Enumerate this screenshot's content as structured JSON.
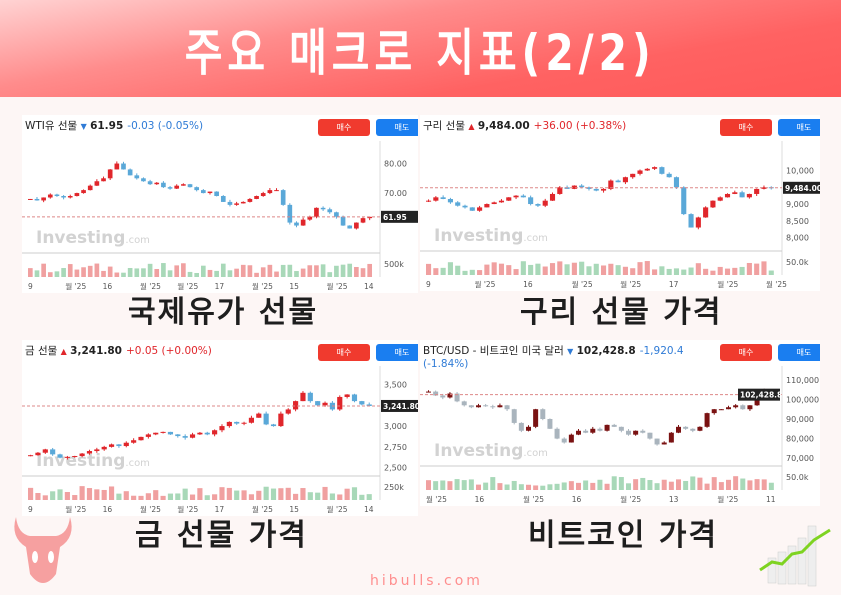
{
  "header": {
    "title": "주요 매크로 지표(2/2)"
  },
  "footer": {
    "site": "hibulls.com"
  },
  "buttons": {
    "buy": "매수",
    "sell": "매도"
  },
  "watermark": "Investing",
  "watermark_suffix": ".com",
  "colors": {
    "up": "#e0262b",
    "down": "#5aa8d8",
    "btc_up": "#7a1212",
    "btc_down": "#a9b4bd",
    "buy": "#f03a2e",
    "sell": "#1a7ef0",
    "header": "#ff5a5a"
  },
  "chart_data": [
    {
      "type": "candlestick",
      "caption": "국제유가 선물",
      "name": "WTI유 선물",
      "direction": "down",
      "price": "61.95",
      "change": "-0.03",
      "change_pct": "(-0.05%)",
      "last": 61.95,
      "price_tag": "61.95",
      "ylim": [
        49.7,
        85.6
      ],
      "yticks": [
        {
          "v": 80,
          "l": "80.00"
        },
        {
          "v": 70,
          "l": "70.00"
        }
      ],
      "vol_label": "500k",
      "xlabels": [
        "9",
        "월 '25",
        "16",
        "월 '25",
        "월 '25",
        "17",
        "월 '25",
        "15",
        "월 '25",
        "14"
      ],
      "closes": [
        68,
        67.5,
        68.5,
        69.5,
        69,
        68.5,
        69,
        70,
        71,
        72.5,
        74,
        75,
        78,
        80,
        78,
        76,
        75,
        74,
        73,
        73.5,
        72,
        71.5,
        72.5,
        73,
        72,
        71,
        70,
        70.5,
        69,
        67,
        66,
        66.5,
        67,
        68,
        69,
        70,
        71,
        71,
        66,
        60,
        59,
        61,
        62,
        65,
        64.5,
        63.5,
        62,
        59,
        58,
        60,
        61.5,
        61.95
      ]
    },
    {
      "type": "candlestick",
      "caption": "구리 선물 가격",
      "name": "구리 선물",
      "direction": "up",
      "price": "9,484.00",
      "change": "+36.00",
      "change_pct": "(+0.38%)",
      "last": 9484,
      "price_tag": "9,484.00",
      "ylim": [
        7600,
        10700
      ],
      "yticks": [
        {
          "v": 10000,
          "l": "10,000"
        },
        {
          "v": 9000,
          "l": "9,000"
        },
        {
          "v": 8500,
          "l": "8,500"
        },
        {
          "v": 8000,
          "l": "8,000"
        }
      ],
      "vol_label": "50.0k",
      "xlabels": [
        "9",
        "월 '25",
        "16",
        "월 '25",
        "월 '25",
        "17",
        "월 '25",
        "월 '25"
      ],
      "closes": [
        9100,
        9200,
        9150,
        9050,
        8950,
        8900,
        8800,
        8900,
        9000,
        9050,
        9100,
        9200,
        9250,
        9200,
        9000,
        8950,
        9100,
        9300,
        9500,
        9450,
        9550,
        9500,
        9450,
        9400,
        9450,
        9700,
        9650,
        9800,
        9900,
        10000,
        10050,
        10100,
        9900,
        9800,
        9500,
        8700,
        8300,
        8600,
        8900,
        9100,
        9200,
        9300,
        9350,
        9200,
        9300,
        9450,
        9500,
        9484
      ]
    },
    {
      "type": "candlestick",
      "caption": "금 선물 가격",
      "name": "금 선물",
      "direction": "up",
      "price": "3,241.80",
      "change": "+0.05",
      "change_pct": "(+0.00%)",
      "last": 3241.8,
      "price_tag": "3,241.80",
      "ylim": [
        2400,
        3650
      ],
      "yticks": [
        {
          "v": 3500,
          "l": "3,500"
        },
        {
          "v": 3000,
          "l": "3,000"
        },
        {
          "v": 2750,
          "l": "2,750"
        },
        {
          "v": 2500,
          "l": "2,500"
        }
      ],
      "vol_label": "250k",
      "xlabels": [
        "9",
        "월 '25",
        "16",
        "월 '25",
        "월 '25",
        "17",
        "월 '25",
        "15",
        "월 '25",
        "14"
      ],
      "closes": [
        2650,
        2680,
        2720,
        2660,
        2620,
        2630,
        2640,
        2670,
        2700,
        2720,
        2750,
        2780,
        2760,
        2800,
        2830,
        2870,
        2900,
        2920,
        2930,
        2900,
        2880,
        2860,
        2900,
        2920,
        2900,
        2950,
        3000,
        3050,
        3030,
        3040,
        3100,
        3150,
        3020,
        3000,
        3150,
        3200,
        3300,
        3400,
        3300,
        3250,
        3280,
        3200,
        3350,
        3380,
        3300,
        3260,
        3241.8
      ]
    },
    {
      "type": "candlestick",
      "caption": "비트코인 가격",
      "name": "BTC/USD - 비트코인 미국 달러",
      "direction": "down",
      "price": "102,428.8",
      "change": "-1,920.4",
      "change_pct": "(-1.84%)",
      "last": 102428.8,
      "price_tag": "102,428.8",
      "ylim": [
        66000,
        114000
      ],
      "yticks": [
        {
          "v": 110000,
          "l": "110,000"
        },
        {
          "v": 100000,
          "l": "100,000"
        },
        {
          "v": 90000,
          "l": "90,000"
        },
        {
          "v": 80000,
          "l": "80,000"
        },
        {
          "v": 70000,
          "l": "70,000"
        }
      ],
      "vol_label": "50.0k",
      "xlabels": [
        "월 '25",
        "16",
        "월 '25",
        "16",
        "월 '25",
        "13",
        "월 '25",
        "11"
      ],
      "closes": [
        104000,
        102000,
        101000,
        103000,
        99000,
        97000,
        96000,
        97000,
        96500,
        96000,
        97000,
        95000,
        88000,
        84000,
        86000,
        95000,
        90000,
        85000,
        80000,
        78000,
        82000,
        84000,
        83000,
        85000,
        84000,
        87000,
        86000,
        84000,
        82000,
        84000,
        83000,
        80000,
        77000,
        78000,
        83000,
        86000,
        85000,
        84000,
        86000,
        93000,
        95000,
        95000,
        96000,
        97000,
        95000,
        97000,
        104000,
        105000,
        102428.8
      ]
    }
  ]
}
